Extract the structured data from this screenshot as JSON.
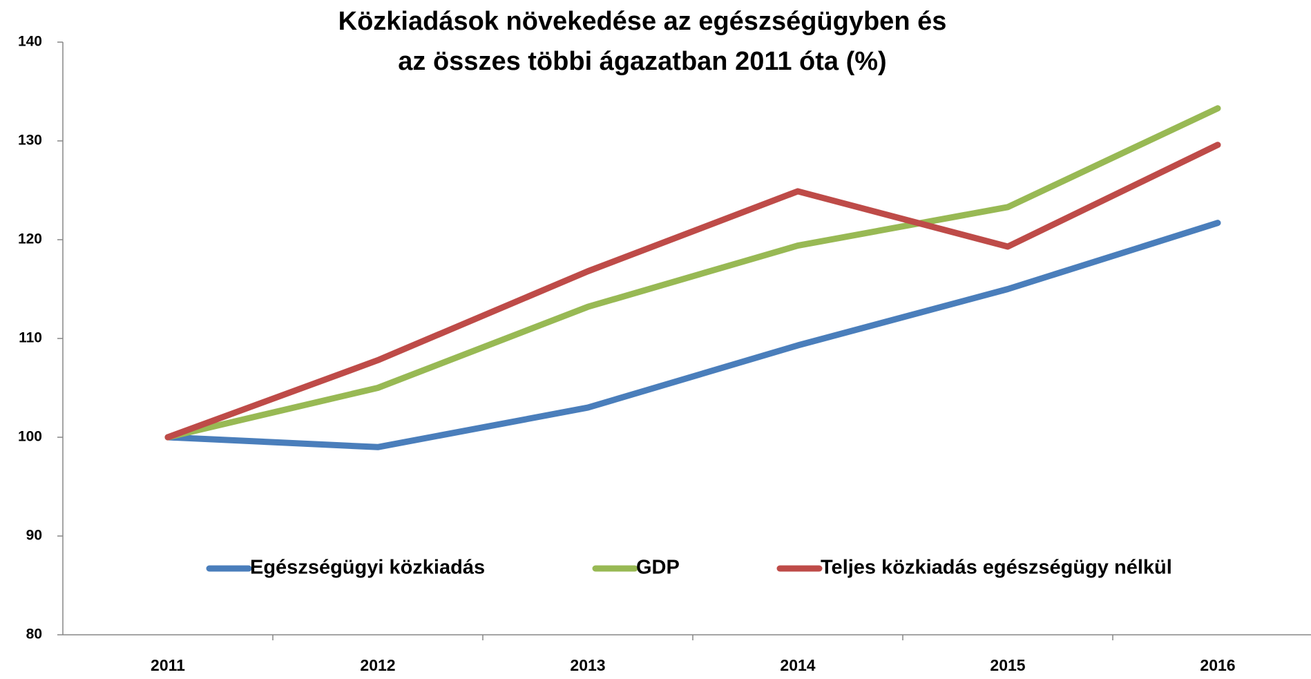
{
  "chart_data": {
    "type": "line",
    "title": [
      "Közkiadások növekedése az egészségügyben és",
      "az összes többi ágazatban 2011 óta (%)"
    ],
    "categories": [
      "2011",
      "2012",
      "2013",
      "2014",
      "2015",
      "2016"
    ],
    "series": [
      {
        "name": "Egészségügyi közkiadás",
        "color": "#4a7ebb",
        "values": [
          100,
          99.0,
          103.0,
          109.3,
          115.0,
          121.7
        ]
      },
      {
        "name": "GDP",
        "color": "#98b954",
        "values": [
          100,
          105.0,
          113.2,
          119.4,
          123.3,
          133.3
        ]
      },
      {
        "name": "Teljes közkiadás egészségügy nélkül",
        "color": "#be4b48",
        "values": [
          100,
          107.8,
          116.8,
          124.9,
          119.3,
          129.6
        ]
      }
    ],
    "ylim": [
      80,
      140
    ],
    "yticks": [
      80,
      90,
      100,
      110,
      120,
      130,
      140
    ],
    "grid": false,
    "legend": "inside-bottom"
  }
}
